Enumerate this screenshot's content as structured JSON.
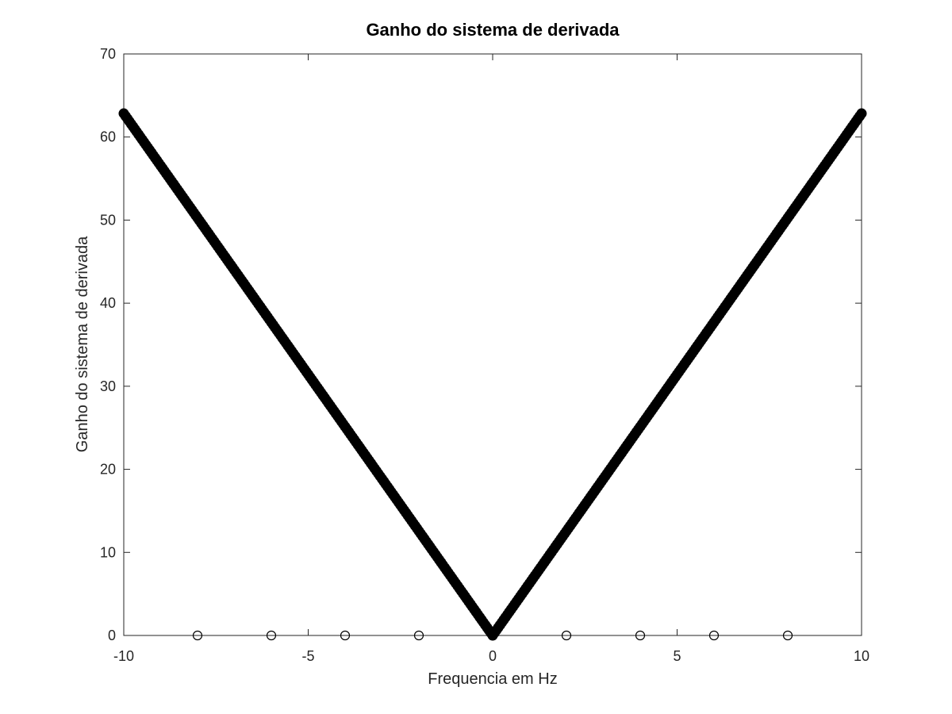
{
  "chart_data": {
    "type": "scatter",
    "title": "Ganho do sistema de derivada",
    "xlabel": "Frequencia em Hz",
    "ylabel": "Ganho do sistema de derivada",
    "xlim": [
      -10,
      10
    ],
    "ylim": [
      0,
      70
    ],
    "xticks": [
      -10,
      -5,
      0,
      5,
      10
    ],
    "yticks": [
      0,
      10,
      20,
      30,
      40,
      50,
      60,
      70
    ],
    "grid": false,
    "series": [
      {
        "kind": "dense-markers",
        "description_formula": "gain = 2*pi*|f|",
        "x_range": [
          -10,
          10
        ],
        "y_at_x_minus10": 62.8,
        "y_at_x_0": 0,
        "y_at_x_plus10": 62.8,
        "color": "#000000"
      },
      {
        "kind": "open-circles",
        "x": [
          -8,
          -6,
          -4,
          -2,
          2,
          4,
          6,
          8
        ],
        "y": [
          0,
          0,
          0,
          0,
          0,
          0,
          0,
          0
        ],
        "color": "#000000"
      }
    ]
  }
}
